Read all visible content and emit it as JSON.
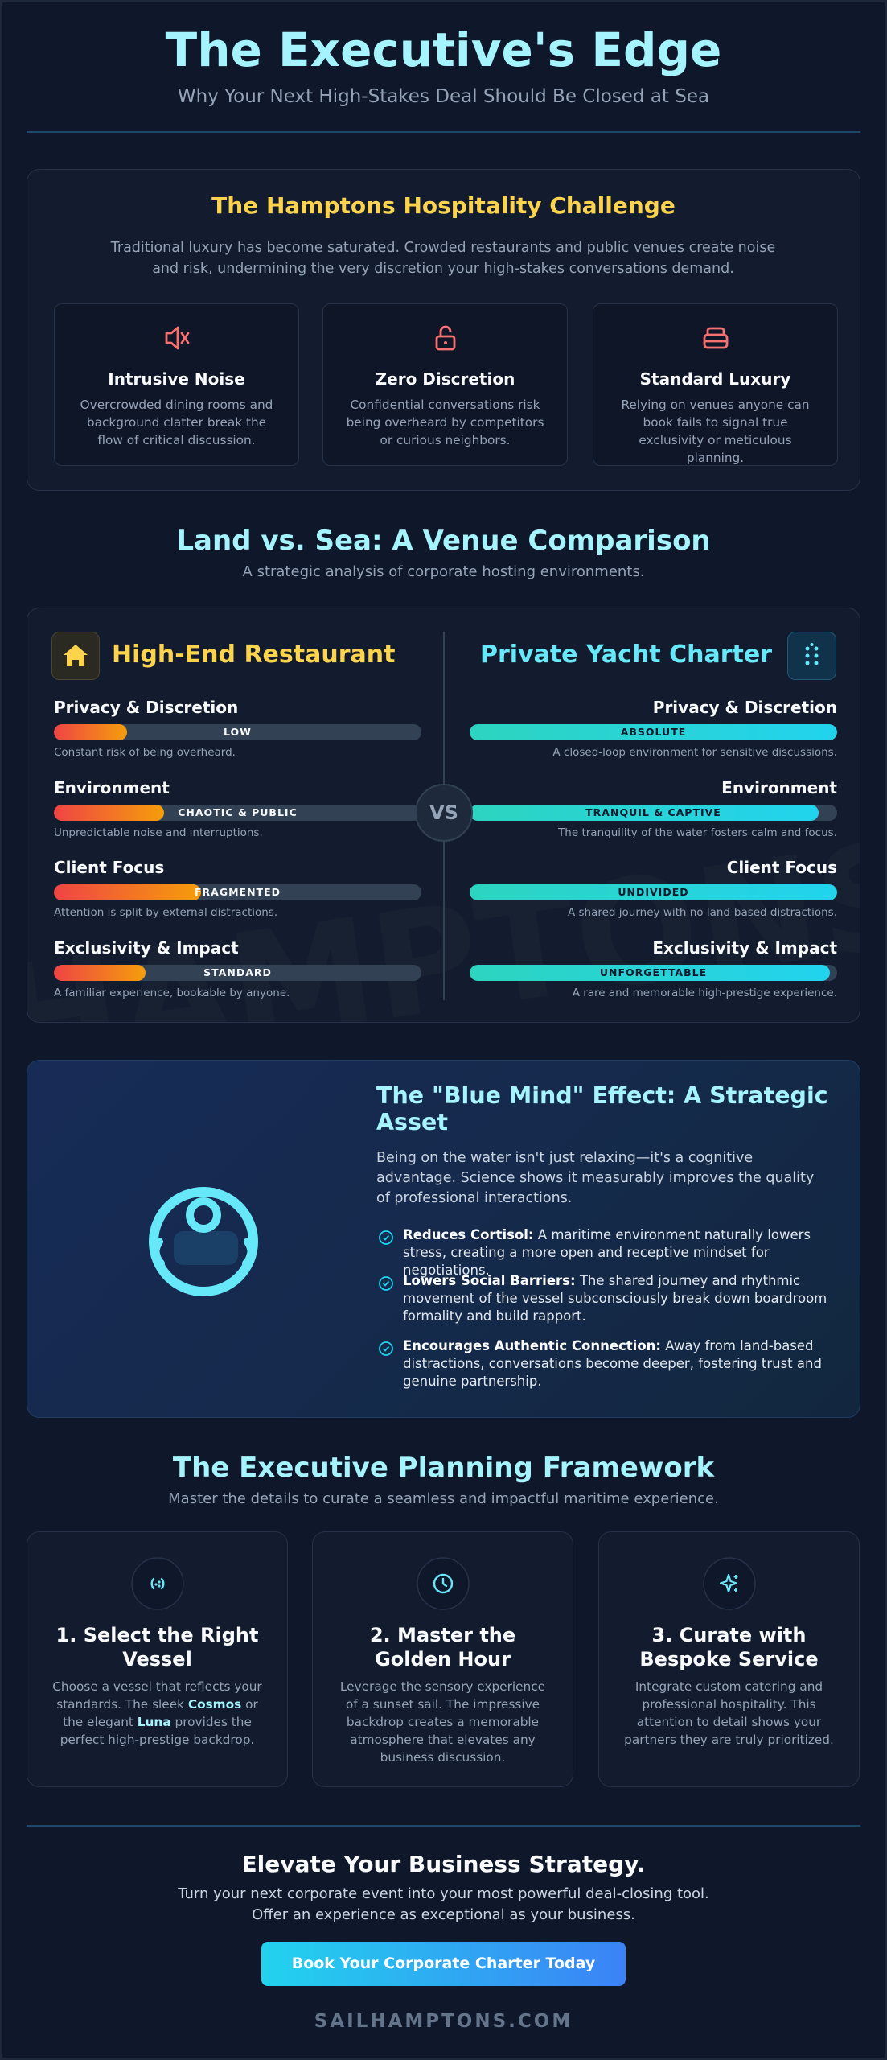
{
  "header": {
    "title": "The Executive's Edge",
    "subtitle": "Why Your Next High-Stakes Deal Should Be Closed at Sea"
  },
  "challenge": {
    "title": "The Hamptons Hospitality Challenge",
    "intro": "Traditional luxury has become saturated. Crowded restaurants and public venues create noise and risk, undermining the very discretion your high-stakes conversations demand.",
    "items": [
      {
        "title": "Intrusive Noise",
        "text": "Overcrowded dining rooms and background clatter break the flow of critical discussion."
      },
      {
        "title": "Zero Discretion",
        "text": "Confidential conversations risk being overheard by competitors or curious neighbors."
      },
      {
        "title": "Standard Luxury",
        "text": "Relying on venues anyone can book fails to signal true exclusivity or meticulous planning."
      }
    ]
  },
  "comparison": {
    "title": "Land vs. Sea: A Venue Comparison",
    "subtitle": "A strategic analysis of corporate hosting environments.",
    "vs": "VS",
    "watermark": "HAMPTONS",
    "land": {
      "title": "High-End Restaurant",
      "metrics": [
        {
          "label": "Privacy & Discretion",
          "rating": "LOW",
          "level": 20,
          "note": "Constant risk of being overheard."
        },
        {
          "label": "Environment",
          "rating": "CHAOTIC & PUBLIC",
          "level": 30,
          "note": "Unpredictable noise and interruptions."
        },
        {
          "label": "Client Focus",
          "rating": "FRAGMENTED",
          "level": 40,
          "note": "Attention is split by external distractions."
        },
        {
          "label": "Exclusivity & Impact",
          "rating": "STANDARD",
          "level": 25,
          "note": "A familiar experience, bookable by anyone."
        }
      ]
    },
    "sea": {
      "title": "Private Yacht Charter",
      "metrics": [
        {
          "label": "Privacy & Discretion",
          "rating": "ABSOLUTE",
          "level": 100,
          "note": "A closed-loop environment for sensitive discussions."
        },
        {
          "label": "Environment",
          "rating": "TRANQUIL & CAPTIVE",
          "level": 95,
          "note": "The tranquility of the water fosters calm and focus."
        },
        {
          "label": "Client Focus",
          "rating": "UNDIVIDED",
          "level": 100,
          "note": "A shared journey with no land-based distractions."
        },
        {
          "label": "Exclusivity & Impact",
          "rating": "UNFORGETTABLE",
          "level": 98,
          "note": "A rare and memorable high-prestige experience."
        }
      ]
    }
  },
  "blue_mind": {
    "title": "The \"Blue Mind\" Effect: A Strategic Asset",
    "intro": "Being on the water isn't just relaxing—it's a cognitive advantage. Science shows it measurably improves the quality of professional interactions.",
    "points": [
      {
        "lead": "Reduces Cortisol:",
        "text": "A maritime environment naturally lowers stress, creating a more open and receptive mindset for negotiations."
      },
      {
        "lead": "Lowers Social Barriers:",
        "text": "The shared journey and rhythmic movement of the vessel subconsciously break down boardroom formality and build rapport."
      },
      {
        "lead": "Encourages Authentic Connection:",
        "text": "Away from land-based distractions, conversations become deeper, fostering trust and genuine partnership."
      }
    ]
  },
  "framework": {
    "title": "The Executive Planning Framework",
    "subtitle": "Master the details to curate a seamless and impactful maritime experience.",
    "steps": [
      {
        "title": "1. Select the Right Vessel",
        "text": [
          "Choose a vessel that reflects your standards. The sleek ",
          "Cosmos",
          " or the elegant ",
          "Luna",
          " provides the perfect high-prestige backdrop."
        ]
      },
      {
        "title": "2. Master the Golden Hour",
        "text": [
          "Leverage the sensory experience of a sunset sail. The impressive backdrop creates a memorable atmosphere that elevates any business discussion."
        ]
      },
      {
        "title": "3. Curate with Bespoke Service",
        "text": [
          "Integrate custom catering and professional hospitality. This attention to detail shows your partners they are truly prioritized."
        ]
      }
    ]
  },
  "cta": {
    "title": "Elevate Your Business Strategy.",
    "lines": [
      "Turn your next corporate event into your most powerful deal-closing tool.",
      "Offer an experience as exceptional as your business."
    ],
    "button": "Book Your Corporate Charter Today"
  },
  "footer": {
    "site": "SAILHAMPTONS.COM"
  }
}
